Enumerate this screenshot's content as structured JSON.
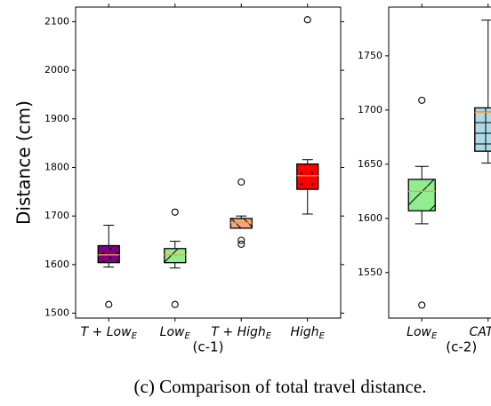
{
  "caption": "(c) Comparison of total travel distance.",
  "chart_data": [
    {
      "type": "box",
      "xlabel": "(c-1)",
      "ylabel": "Distance (cm)",
      "categories": [
        "T + Low",
        "Low",
        "T + High",
        "High"
      ],
      "category_subscripts": [
        "E",
        "E",
        "E",
        "E"
      ],
      "ylim": [
        1490,
        2130
      ],
      "yticks": [
        1500,
        1600,
        1700,
        1800,
        1900,
        2000,
        2100
      ],
      "median_color": "#f5a040",
      "boxes": [
        {
          "color": "#800080",
          "hatch": "o",
          "whisker_low": 1595,
          "q1": 1604,
          "median": 1620,
          "q3": 1639,
          "whisker_high": 1681,
          "outliers": [
            1518
          ]
        },
        {
          "color": "#90ee90",
          "hatch": "/",
          "whisker_low": 1593,
          "q1": 1604,
          "median": 1620,
          "q3": 1633,
          "whisker_high": 1648,
          "outliers": [
            1708,
            1518
          ]
        },
        {
          "color": "#f4a582",
          "hatch": "\\",
          "whisker_low": 1675,
          "q1": 1675,
          "median": 1686,
          "q3": 1695,
          "whisker_high": 1700,
          "outliers": [
            1770,
            1650,
            1642
          ]
        },
        {
          "color": "#ff0000",
          "hatch": ".",
          "whisker_low": 1704,
          "q1": 1755,
          "median": 1783,
          "q3": 1807,
          "whisker_high": 1816,
          "outliers": [
            2104
          ]
        }
      ]
    },
    {
      "type": "box",
      "xlabel": "(c-2)",
      "categories": [
        "Low",
        "CATA"
      ],
      "category_subscripts": [
        "E",
        "U"
      ],
      "ylim": [
        1508,
        1795
      ],
      "yticks": [
        1550,
        1600,
        1650,
        1700,
        1750
      ],
      "median_color": "#f5a040",
      "boxes": [
        {
          "color": "#90ee90",
          "hatch": "/",
          "whisker_low": 1595,
          "q1": 1607,
          "median": 1625,
          "q3": 1636,
          "whisker_high": 1648,
          "outliers": [
            1709,
            1520
          ]
        },
        {
          "color": "#add8e6",
          "hatch": "+",
          "whisker_low": 1651,
          "q1": 1662,
          "median": 1698,
          "q3": 1702,
          "whisker_high": 1783,
          "outliers": []
        }
      ]
    }
  ]
}
